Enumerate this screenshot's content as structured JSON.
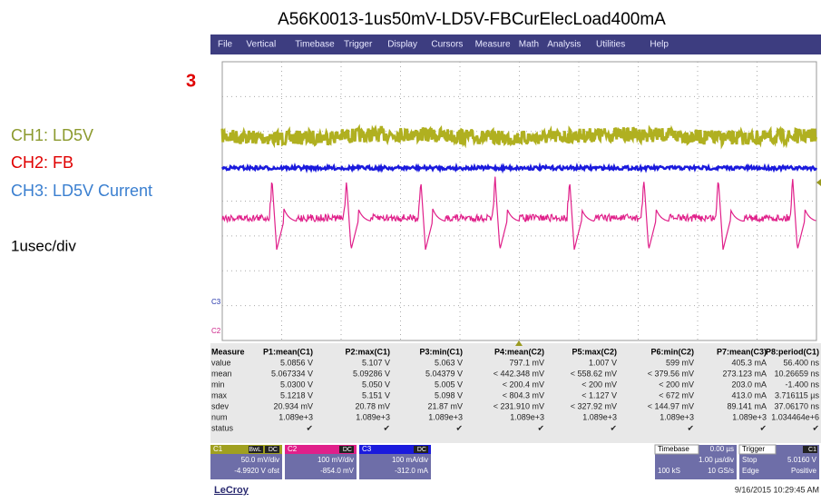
{
  "title": "A56K0013-1us50mV-LD5V-FBCurElecLoad400mA",
  "menu": [
    "File",
    "Vertical",
    "Timebase",
    "Trigger",
    "Display",
    "Cursors",
    "Measure",
    "Math",
    "Analysis",
    "Utilities",
    "Help"
  ],
  "side": {
    "marker": "3",
    "ch1": "CH1: LD5V",
    "ch2": "CH2: FB",
    "ch3": "CH3: LD5V Current",
    "timescale": "1usec/div"
  },
  "trace_labels": {
    "c3": "C3",
    "c2": "C2"
  },
  "measure": {
    "header": [
      "Measure",
      "P1:mean(C1)",
      "P2:max(C1)",
      "P3:min(C1)",
      "P4:mean(C2)",
      "P5:max(C2)",
      "P6:min(C2)",
      "P7:mean(C3)",
      "P8:period(C1)"
    ],
    "rows": [
      [
        "value",
        "5.0856 V",
        "5.107 V",
        "5.063 V",
        "797.1 mV",
        "1.007 V",
        "599 mV",
        "405.3 mA",
        "56.400 ns"
      ],
      [
        "mean",
        "5.067334 V",
        "5.09286 V",
        "5.04379 V",
        "< 442.348 mV",
        "< 558.62 mV",
        "< 379.56 mV",
        "273.123 mA",
        "10.26659 ns"
      ],
      [
        "min",
        "5.0300 V",
        "5.050 V",
        "5.005 V",
        "< 200.4 mV",
        "< 200 mV",
        "< 200 mV",
        "203.0 mA",
        "-1.400 ns"
      ],
      [
        "max",
        "5.1218 V",
        "5.151 V",
        "5.098 V",
        "< 804.3 mV",
        "< 1.127 V",
        "< 672 mV",
        "413.0 mA",
        "3.716115 µs"
      ],
      [
        "sdev",
        "20.934 mV",
        "20.78 mV",
        "21.87 mV",
        "< 231.910 mV",
        "< 327.92 mV",
        "< 144.97 mV",
        "89.141 mA",
        "37.06170 ns"
      ],
      [
        "num",
        "1.089e+3",
        "1.089e+3",
        "1.089e+3",
        "1.089e+3",
        "1.089e+3",
        "1.089e+3",
        "1.089e+3",
        "1.034464e+6"
      ],
      [
        "status",
        "✔",
        "✔",
        "✔",
        "✔",
        "✔",
        "✔",
        "✔",
        "✔"
      ]
    ]
  },
  "channels": [
    {
      "name": "C1",
      "tags": [
        "BwL",
        "DC"
      ],
      "scale": "50.0 mV/div",
      "offset": "-4.9920 V ofst"
    },
    {
      "name": "C2",
      "tags": [
        "DC"
      ],
      "scale": "100 mV/div",
      "offset": "-854.0 mV"
    },
    {
      "name": "C3",
      "tags": [
        "DC"
      ],
      "scale": "100 mA/div",
      "offset": "-312.0 mA"
    }
  ],
  "timebase": {
    "label": "Timebase",
    "delay": "0.00 µs",
    "div": "1.00 µs/div",
    "samples": "100 kS",
    "rate": "10 GS/s"
  },
  "trigger": {
    "label": "Trigger",
    "source": "C1",
    "mode": "Stop",
    "level": "5.0160 V",
    "type": "Edge",
    "slope": "Positive"
  },
  "brand": "LeCroy",
  "timestamp": "9/16/2015 10:29:45 AM"
}
